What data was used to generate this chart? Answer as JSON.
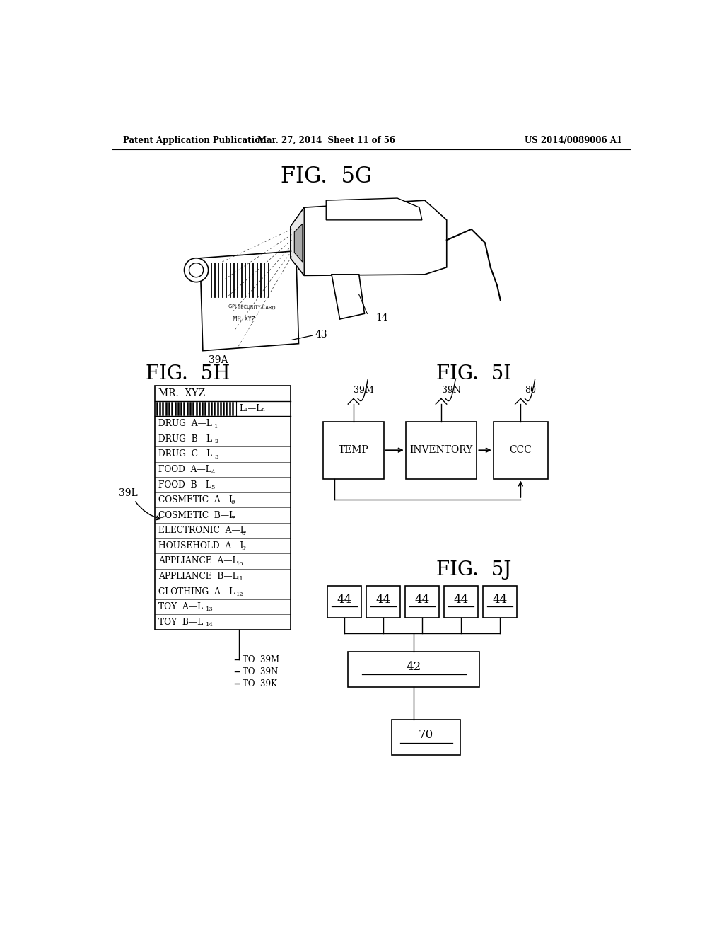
{
  "header_left": "Patent Application Publication",
  "header_center": "Mar. 27, 2014  Sheet 11 of 56",
  "header_right": "US 2014/0089006 A1",
  "fig5g_label": "FIG.  5G",
  "fig5h_label": "FIG.  5H",
  "fig5i_label": "FIG.  5I",
  "fig5j_label": "FIG.  5J",
  "fig5h_title": "MR.  XYZ",
  "fig5i_boxes": [
    "TEMP",
    "INVENTORY",
    "CCC"
  ],
  "fig5i_labels": [
    "39M",
    "39N",
    "80"
  ],
  "fig5j_box_mid": "42",
  "fig5j_box_bot": "70",
  "label_39a": "39A",
  "label_14": "14",
  "label_43": "43",
  "label_39l": "39L",
  "to_labels": [
    "TO  39M",
    "TO  39N",
    "TO  39K"
  ],
  "bg_color": "#ffffff"
}
